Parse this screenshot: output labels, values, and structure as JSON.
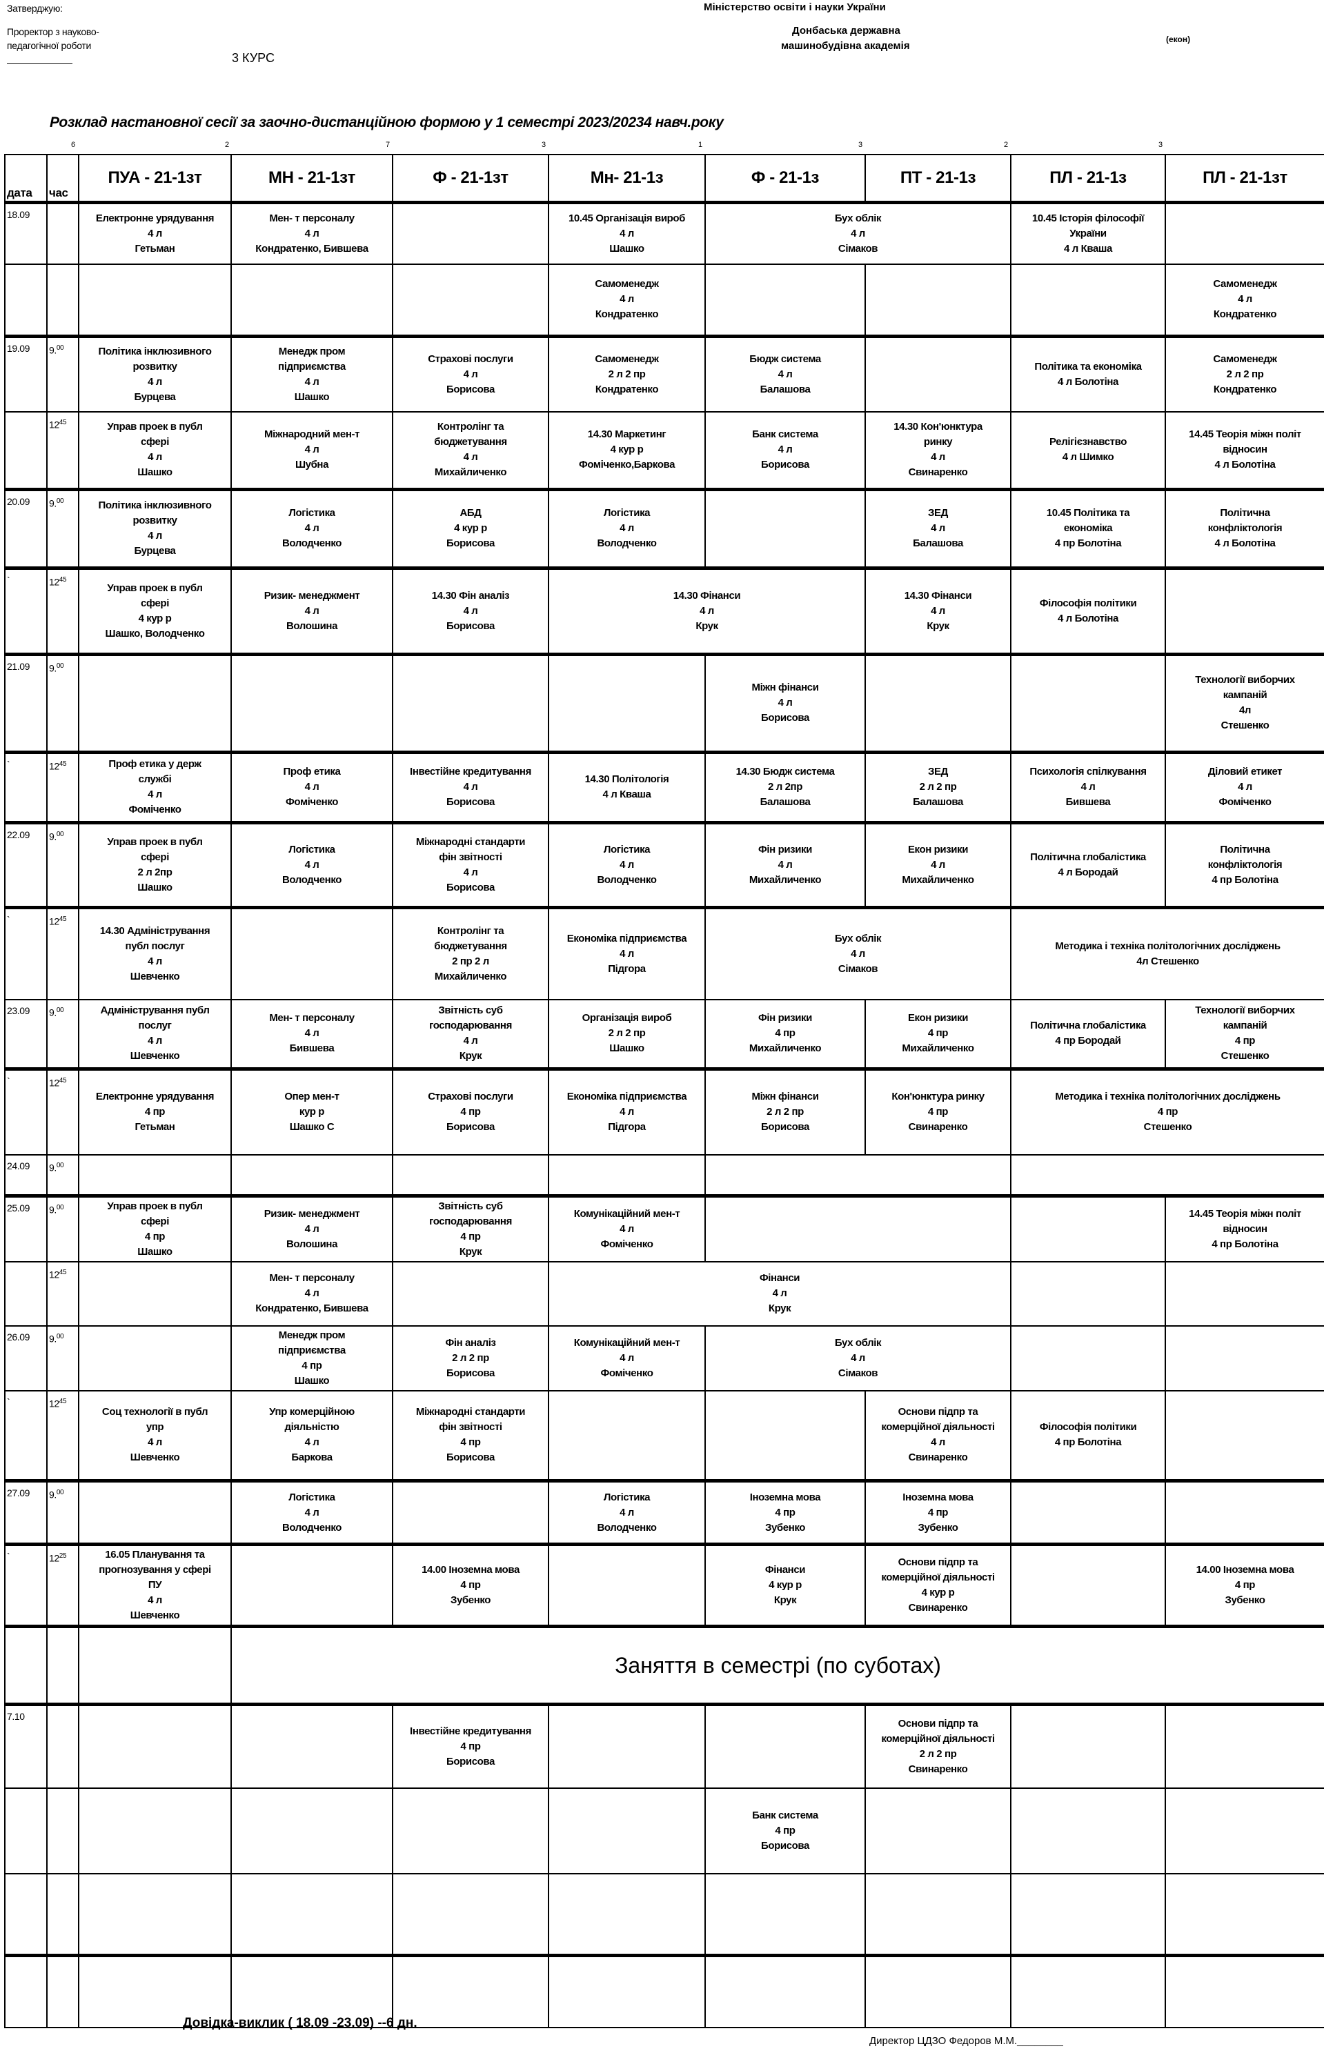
{
  "header": {
    "approve": "Затверджую:",
    "prorector_line1": "Проректор з науково-",
    "prorector_line2": "педагогічної роботи",
    "course": "3 КУРС",
    "ministry": "Міністерство освіти і науки України",
    "academy_line1": "Донбаська державна",
    "academy_line2": "машинобудівна академія",
    "faculty": "(екон)",
    "title": "Розклад настановної  сесії за заочно-дистанційною формою у 1 семестрі  2023/20234  навч.року",
    "column_counts": [
      "6",
      "2",
      "7",
      "3",
      "1",
      "3",
      "2",
      "3"
    ]
  },
  "table": {
    "date_label": "дата",
    "time_label": "час",
    "groups": [
      "ПУА - 21-1зт",
      "МН - 21-1зт",
      "Ф - 21-1зт",
      "Мн-  21-1з",
      "Ф - 21-1з",
      "ПТ - 21-1з",
      "ПЛ - 21-1з",
      "ПЛ - 21-1зт"
    ],
    "rows": [
      {
        "date": "18.09",
        "time": null,
        "day": true,
        "cells": [
          "Електронне урядування\n4 л\nГетьман",
          "Мен- т  персоналу\n4 л\nКондратенко, Бившева",
          "",
          "10.45 Організація  вироб\n4  л\nШашко",
          {
            "span": 2,
            "text": "Бух  облік\n4 л\nСімаков"
          },
          "10.45  Історія філософії\nУкраїни\n4 л Кваша",
          ""
        ]
      },
      {
        "date": "",
        "time": null,
        "day": false,
        "cells": [
          "",
          "",
          "",
          "Самоменедж\n4 л\nКондратенко",
          "",
          "",
          "",
          "Самоменедж\n4 л\nКондратенко"
        ]
      },
      {
        "date": "19.09",
        "time": {
          "h": "9.",
          "m": "00"
        },
        "day": true,
        "cells": [
          "Політика інклюзивного\nрозвитку\n4 л\nБурцева",
          "Менедж пром\nпідприємства\n4 л\nШашко",
          "Страхові послуги\n4 л\nБорисова",
          "Самоменедж\n2 л   2 пр\nКондратенко",
          "Бюдж система\n4 л\nБалашова",
          "",
          "Політика та економіка\n4 л  Болотіна",
          "Самоменедж\n2 л   2 пр\nКондратенко"
        ]
      },
      {
        "date": "",
        "time": {
          "h": "12",
          "m": "45"
        },
        "day": false,
        "cells": [
          "Управ проек в публ\nсфері\n4 л\nШашко",
          "Міжнародний мен-т\n4 л\nШубна",
          "Контролінг та\nбюджетування\n4 л\nМихайличенко",
          "14.30    Маркетинг\n4 кур р\nФоміченко,Баркова",
          "Банк система\n4 л\nБорисова",
          "14.30  Кон'юнктура\nринку\n4 л\nСвинаренко",
          "Релігієзнавство\n4 л  Шимко",
          "14.45   Теорія міжн політ\nвідносин\n4 л  Болотіна"
        ]
      },
      {
        "date": "20.09",
        "time": {
          "h": "9.",
          "m": "00"
        },
        "day": true,
        "cells": [
          "Політика інклюзивного\nрозвитку\n4 л\nБурцева",
          "Логістика\n4 л\nВолодченко",
          "АБД\n4  кур р\nБорисова",
          "Логістика\n4 л\nВолодченко",
          "",
          "ЗЕД\n4 л\nБалашова",
          "10.45   Політика та\nекономіка\n4 пр  Болотіна",
          "Політична\nконфліктологія\n4 л  Болотіна"
        ]
      },
      {
        "date": "`",
        "time": {
          "h": "12",
          "m": "45"
        },
        "day": true,
        "cells": [
          "Управ проек в публ\nсфері\n4   кур р\nШашко, Володченко",
          "Ризик- менеджмент\n4 л\nВолошина",
          "14.30  Фін аналіз\n4 л\nБорисова",
          {
            "span": 2,
            "text": "14.30          Фінанси\n4 л\nКрук"
          },
          "14.30       Фінанси\n4 л\nКрук",
          "Філософія політики\n4 л  Болотіна",
          ""
        ]
      },
      {
        "date": "21.09",
        "time": {
          "h": "9.",
          "m": "00"
        },
        "day": true,
        "cells": [
          "",
          "",
          "",
          "",
          "Міжн фінанси\n4 л\nБорисова",
          "",
          "",
          "Технології виборчих\nкампаній\n4л\nСтешенко"
        ]
      },
      {
        "date": "`",
        "time": {
          "h": "12",
          "m": "45"
        },
        "day": true,
        "cells": [
          "Проф етика у держ\nслужбі\n4 л\nФоміченко",
          "Проф етика\n4 л\nФоміченко",
          "Інвестійне кредитування\n4 л\nБорисова",
          "14.30  Політологія\n4 л   Кваша",
          "14.30  Бюдж система\n2 л 2пр\nБалашова",
          "ЗЕД\n2 л 2 пр\nБалашова",
          "Психологія спілкування\n4 л\nБившева",
          "Діловий  етикет\n4 л\nФоміченко"
        ]
      },
      {
        "date": "22.09",
        "time": {
          "h": "9.",
          "m": "00"
        },
        "day": true,
        "cells": [
          "Управ проек в публ\nсфері\n2 л   2пр\nШашко",
          "Логістика\n4 л\nВолодченко",
          "Міжнародні стандарти\nфін звітності\n4 л\nБорисова",
          "Логістика\n4 л\nВолодченко",
          "Фін ризики\n4 л\nМихайличенко",
          "Екон ризики\n4 л\nМихайличенко",
          "Політична глобалістика\n4 л Бородай",
          "Політична\nконфліктологія\n4 пр  Болотіна"
        ]
      },
      {
        "date": "`",
        "time": {
          "h": "12",
          "m": "45"
        },
        "day": true,
        "cells": [
          "14.30  Адміністрування\nпубл послуг\n4 л\nШевченко",
          "",
          "Контролінг та\nбюджетування\n2 пр  2 л\nМихайличенко",
          "Економіка підприємства\n4 л\nПідгора",
          {
            "span": 2,
            "text": "Бух  облік\n4 л\nСімаков"
          },
          {
            "span": 2,
            "text": "Методика і техніка  політологічних досліджень\n4л Стешенко"
          }
        ]
      },
      {
        "date": "23.09",
        "time": {
          "h": "9.",
          "m": "00"
        },
        "day": false,
        "cells": [
          "Адміністрування  публ\nпослуг\n4 л\nШевченко",
          "Мен- т  персоналу\n4 л\nБившева",
          "Звітність суб\nгосподарювання\n4 л\nКрук",
          "Організація  вироб\n2  л   2 пр\nШашко",
          "Фін ризики\n4 пр\nМихайличенко",
          "Екон ризики\n4 пр\nМихайличенко",
          "Політична глобалістика\n4  пр Бородай",
          "Технології виборчих\nкампаній\n4 пр\nСтешенко"
        ]
      },
      {
        "date": "`",
        "time": {
          "h": "12",
          "m": "45"
        },
        "day": true,
        "cells": [
          "Електронне урядування\n4 пр\nГетьман",
          "Опер  мен-т\nкур р\nШашко С",
          "Страхові послуги\n4 пр\nБорисова",
          "Економіка підприємства\n4 л\nПідгора",
          "Міжн фінанси\n2 л  2 пр\nБорисова",
          "Кон'юнктура ринку\n4  пр\nСвинаренко",
          {
            "span": 2,
            "text": "Методика і техніка  політологічних  досліджень\n4  пр\nСтешенко"
          }
        ]
      },
      {
        "date": "24.09",
        "time": {
          "h": "9.",
          "m": "00"
        },
        "day": false,
        "cells": [
          "",
          "",
          "",
          "",
          {
            "span": 2,
            "text": ""
          },
          {
            "span": 2,
            "text": ""
          }
        ]
      },
      {
        "date": "25.09",
        "time": {
          "h": "9.",
          "m": "00"
        },
        "day": true,
        "cells": [
          "Управ проек в публ\nсфері\n4  пр\nШашко",
          "Ризик- менеджмент\n4 л\nВолошина",
          "Звітність суб\nгосподарювання\n4 пр\nКрук",
          "Комунікаційний мен-т\n4 л\nФоміченко",
          {
            "span": 2,
            "text": ""
          },
          "",
          "14.45   Теорія міжн політ\nвідносин\n4 пр  Болотіна"
        ]
      },
      {
        "date": "",
        "time": {
          "h": "12",
          "m": "45"
        },
        "day": false,
        "cells": [
          "",
          "Мен- т  персоналу\n4 л\nКондратенко, Бившева",
          "",
          {
            "span": 3,
            "text": "Фінанси\n4 л\nКрук"
          },
          "",
          ""
        ]
      },
      {
        "date": "26.09",
        "time": {
          "h": "9.",
          "m": "00"
        },
        "day": false,
        "cells": [
          "",
          "Менедж пром\nпідприємства\n4 пр\nШашко",
          "Фін аналіз\n2 л 2 пр\nБорисова",
          "Комунікаційний мен-т\n4 л\nФоміченко",
          {
            "span": 2,
            "text": "Бух  облік\n4 л\nСімаков"
          },
          "",
          ""
        ]
      },
      {
        "date": "`",
        "time": {
          "h": "12",
          "m": "45"
        },
        "day": false,
        "cells": [
          "Соц  технології в публ\nупр\n4 л\nШевченко",
          "Упр комерційною\nдіяльністю\n4 л\nБаркова",
          "Міжнародні стандарти\nфін звітності\n4 пр\nБорисова",
          "",
          "",
          "Основи підпр та\nкомерційної діяльності\n4 л\nСвинаренко",
          "Філософія політики\n4 пр  Болотіна",
          ""
        ]
      },
      {
        "date": "27.09",
        "time": {
          "h": "9.",
          "m": "00"
        },
        "day": true,
        "cells": [
          "",
          "Логістика\n4 л\nВолодченко",
          "",
          "Логістика\n4 л\nВолодченко",
          "Іноземна мова\n4 пр\nЗубенко",
          "Іноземна мова\n4 пр\nЗубенко",
          "",
          ""
        ]
      },
      {
        "date": "`",
        "time": {
          "h": "12",
          "m": "25"
        },
        "day": true,
        "cells": [
          "16.05    Планування та\nпрогнозування у сфері\nПУ\n4 л\nШевченко",
          "",
          "14.00 Іноземна мова\n4 пр\nЗубенко",
          "",
          "Фінанси\n4 кур р\nКрук",
          "Основи підпр та\nкомерційної діяльності\n4 кур р\nСвинаренко",
          "",
          "14.00 Іноземна мова\n4 пр\nЗубенко"
        ]
      },
      {
        "date": "",
        "time": null,
        "day": true,
        "banner": true,
        "cells": [
          "",
          {
            "span": 7,
            "text": "Заняття в семестрі (по суботах)"
          }
        ]
      },
      {
        "date": "7.10",
        "time": null,
        "day": true,
        "cells": [
          "",
          "",
          "Інвестійне кредитування\n4 пр\nБорисова",
          "",
          "",
          "Основи підпр та\nкомерційної діяльності\n2 л 2 пр\nСвинаренко",
          "",
          ""
        ]
      },
      {
        "date": "",
        "time": null,
        "day": false,
        "cells": [
          "",
          "",
          "",
          "",
          "Банк система\n4 пр\nБорисова",
          "",
          "",
          ""
        ]
      },
      {
        "date": "",
        "time": null,
        "day": false,
        "cells": [
          "",
          "",
          "",
          "",
          "",
          "",
          "",
          ""
        ]
      },
      {
        "date": "",
        "time": null,
        "day": true,
        "cells": [
          "",
          "",
          "",
          "",
          "",
          "",
          "",
          ""
        ]
      }
    ]
  },
  "footer": {
    "summons": "Довідка-виклик   ( 18.09 -23.09) --6 дн.",
    "signature": "Директор   ЦДЗО   Федоров М.М.________"
  }
}
